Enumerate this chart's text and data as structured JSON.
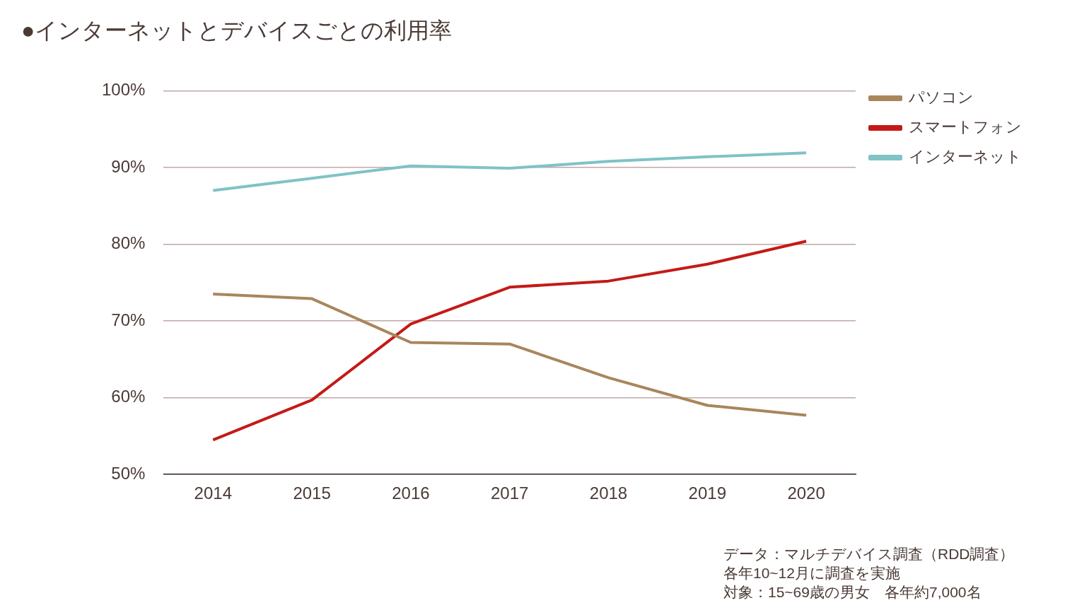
{
  "chart_data": {
    "type": "line",
    "title": "●インターネットとデバイスごとの利用率",
    "categories": [
      "2014",
      "2015",
      "2016",
      "2017",
      "2018",
      "2019",
      "2020"
    ],
    "series": [
      {
        "name": "パソコン",
        "color": "#a8865c",
        "values": [
          73.5,
          72.9,
          67.2,
          67.0,
          62.6,
          59.0,
          57.7
        ]
      },
      {
        "name": "スマートフォン",
        "color": "#c41a17",
        "values": [
          54.5,
          59.7,
          69.6,
          74.4,
          75.2,
          77.4,
          80.4
        ]
      },
      {
        "name": "インターネット",
        "color": "#7fc3c5",
        "values": [
          87.0,
          88.6,
          90.2,
          89.9,
          90.8,
          91.4,
          91.9
        ]
      }
    ],
    "ylim": [
      50,
      100
    ],
    "yticks": [
      {
        "value": 50,
        "label": "50%"
      },
      {
        "value": 60,
        "label": "60%"
      },
      {
        "value": 70,
        "label": "70%"
      },
      {
        "value": 80,
        "label": "80%"
      },
      {
        "value": 90,
        "label": "90%"
      },
      {
        "value": 100,
        "label": "100%"
      }
    ],
    "grid": "y",
    "legend": "top right",
    "marker": "none",
    "line_style": "solid",
    "annotations": [
      "データ：マルチデバイス調査（RDD調査）",
      "各年10~12月に調査を実施",
      "対象：15~69歳の男女　各年約7,000名"
    ]
  }
}
